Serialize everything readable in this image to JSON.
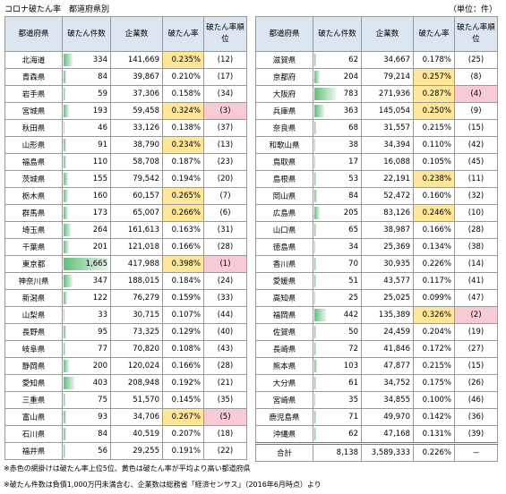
{
  "header": {
    "title": "コロナ破たん率　都道府県別",
    "unit": "（単位：件）"
  },
  "columns": [
    "都道府県",
    "破たん件数",
    "企業数",
    "破たん率",
    "破たん率順位"
  ],
  "left": {
    "rows": [
      [
        "北海道",
        "334",
        "141,669",
        "0.235%",
        "(12)"
      ],
      [
        "青森県",
        "84",
        "39,867",
        "0.210%",
        "(17)"
      ],
      [
        "岩手県",
        "59",
        "37,306",
        "0.158%",
        "(34)"
      ],
      [
        "宮城県",
        "193",
        "59,458",
        "0.324%",
        "(3)"
      ],
      [
        "秋田県",
        "46",
        "33,126",
        "0.138%",
        "(37)"
      ],
      [
        "山形県",
        "91",
        "38,790",
        "0.234%",
        "(13)"
      ],
      [
        "福島県",
        "110",
        "58,708",
        "0.187%",
        "(23)"
      ],
      [
        "茨城県",
        "155",
        "79,542",
        "0.194%",
        "(20)"
      ],
      [
        "栃木県",
        "160",
        "60,157",
        "0.265%",
        "(7)"
      ],
      [
        "群馬県",
        "173",
        "65,007",
        "0.266%",
        "(6)"
      ],
      [
        "埼玉県",
        "264",
        "161,613",
        "0.163%",
        "(31)"
      ],
      [
        "千葉県",
        "201",
        "121,018",
        "0.166%",
        "(28)"
      ],
      [
        "東京都",
        "1,665",
        "417,988",
        "0.398%",
        "(1)"
      ],
      [
        "神奈川県",
        "347",
        "188,015",
        "0.184%",
        "(24)"
      ],
      [
        "新潟県",
        "122",
        "76,279",
        "0.159%",
        "(33)"
      ],
      [
        "山梨県",
        "33",
        "30,715",
        "0.107%",
        "(44)"
      ],
      [
        "長野県",
        "95",
        "73,325",
        "0.129%",
        "(40)"
      ],
      [
        "岐阜県",
        "77",
        "70,820",
        "0.108%",
        "(43)"
      ],
      [
        "静岡県",
        "200",
        "120,024",
        "0.166%",
        "(28)"
      ],
      [
        "愛知県",
        "403",
        "208,948",
        "0.192%",
        "(21)"
      ],
      [
        "三重県",
        "75",
        "51,570",
        "0.145%",
        "(35)"
      ],
      [
        "富山県",
        "93",
        "34,706",
        "0.267%",
        "(5)"
      ],
      [
        "石川県",
        "84",
        "40,519",
        "0.207%",
        "(18)"
      ],
      [
        "福井県",
        "56",
        "29,255",
        "0.191%",
        "(22)"
      ]
    ]
  },
  "right": {
    "rows": [
      [
        "滋賀県",
        "62",
        "34,667",
        "0.178%",
        "(25)"
      ],
      [
        "京都府",
        "204",
        "79,214",
        "0.257%",
        "(8)"
      ],
      [
        "大阪府",
        "783",
        "271,936",
        "0.287%",
        "(4)"
      ],
      [
        "兵庫県",
        "363",
        "145,054",
        "0.250%",
        "(9)"
      ],
      [
        "奈良県",
        "68",
        "31,557",
        "0.215%",
        "(15)"
      ],
      [
        "和歌山県",
        "38",
        "34,394",
        "0.110%",
        "(42)"
      ],
      [
        "鳥取県",
        "17",
        "16,088",
        "0.105%",
        "(45)"
      ],
      [
        "島根県",
        "53",
        "22,191",
        "0.238%",
        "(11)"
      ],
      [
        "岡山県",
        "84",
        "52,472",
        "0.160%",
        "(32)"
      ],
      [
        "広島県",
        "205",
        "83,126",
        "0.246%",
        "(10)"
      ],
      [
        "山口県",
        "65",
        "38,987",
        "0.166%",
        "(28)"
      ],
      [
        "徳島県",
        "34",
        "25,369",
        "0.134%",
        "(38)"
      ],
      [
        "香川県",
        "70",
        "30,935",
        "0.226%",
        "(14)"
      ],
      [
        "愛媛県",
        "51",
        "43,577",
        "0.117%",
        "(41)"
      ],
      [
        "高知県",
        "25",
        "25,025",
        "0.099%",
        "(47)"
      ],
      [
        "福岡県",
        "442",
        "135,389",
        "0.326%",
        "(2)"
      ],
      [
        "佐賀県",
        "50",
        "24,459",
        "0.204%",
        "(19)"
      ],
      [
        "長崎県",
        "72",
        "41,846",
        "0.172%",
        "(27)"
      ],
      [
        "熊本県",
        "103",
        "47,877",
        "0.215%",
        "(15)"
      ],
      [
        "大分県",
        "61",
        "34,752",
        "0.175%",
        "(26)"
      ],
      [
        "宮崎県",
        "35",
        "34,855",
        "0.100%",
        "(46)"
      ],
      [
        "鹿児島県",
        "71",
        "49,970",
        "0.142%",
        "(36)"
      ],
      [
        "沖縄県",
        "62",
        "47,168",
        "0.131%",
        "(39)"
      ]
    ],
    "total": [
      "合計",
      "8,138",
      "3,589,333",
      "0.226%",
      "－"
    ]
  },
  "notes": [
    "※赤色の網掛けは破たん率上位5位、黄色は破たん率が平均より高い都道府県",
    "※破たん件数は負債1,000万円未満含む、企業数は総務省「経済センサス」（2016年6月時点）より"
  ]
}
